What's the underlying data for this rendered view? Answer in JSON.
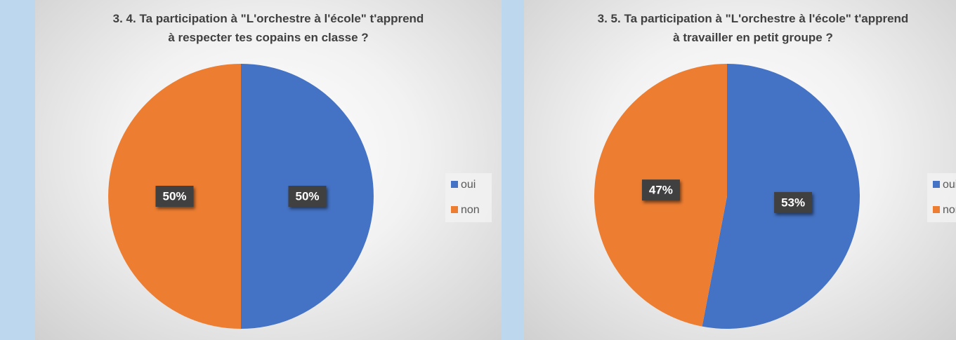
{
  "chart_data": [
    {
      "type": "pie",
      "title": [
        "3. 4.  Ta participation à \"L'orchestre à l'école\" t'apprend",
        "à respecter tes copains en classe ?"
      ],
      "categories": [
        "oui",
        "non"
      ],
      "values": [
        50,
        50
      ],
      "value_labels": [
        "50%",
        "50%"
      ],
      "colors": [
        "#4472c4",
        "#ed7d31"
      ],
      "legend": "right"
    },
    {
      "type": "pie",
      "title": [
        "3. 5.  Ta participation à \"L'orchestre à l'école\" t'apprend",
        "à travailler en petit groupe ?"
      ],
      "categories": [
        "oui",
        "non"
      ],
      "values": [
        53,
        47
      ],
      "value_labels": [
        "53%",
        "47%"
      ],
      "colors": [
        "#4472c4",
        "#ed7d31"
      ],
      "legend": "right"
    }
  ]
}
